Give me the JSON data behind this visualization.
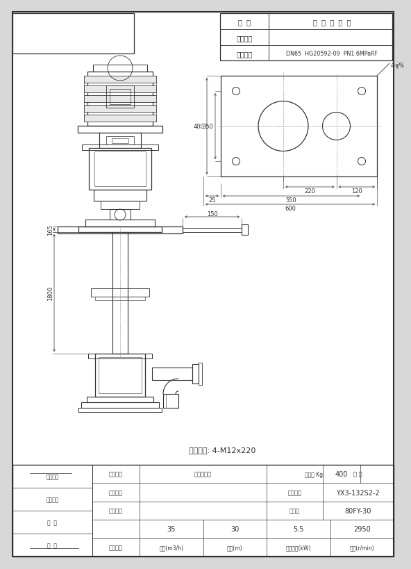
{
  "bg_color": "#d8d8d8",
  "paper_color": "#ffffff",
  "line_color": "#303030",
  "title_table": {
    "name_label": "名  称",
    "std_label": "标  准  及  规  格",
    "inlet_label": "泵吸入口",
    "outlet_label": "泵吐出口",
    "outlet_value": "DN65  HG20592-09  PN1.6MPaRF"
  },
  "anchor_bolt": "地脚螺栓: 4-M12x220",
  "perf_table": {
    "col1": "性能参数",
    "col2_h": "流量(m3/h)",
    "col3_h": "扬程(m)",
    "col4_h": "配用功率(kW)",
    "col5_h": "转速(r/min)",
    "col2_v": "35",
    "col3_v": "30",
    "col4_v": "5.5",
    "col5_v": "2950",
    "equip_no_label": "设备位号",
    "pump_model_label": "泵型号",
    "pump_model_value": "80FY-30",
    "proj_name_label": "工程名称",
    "motor_model_label": "电机型号",
    "motor_model_value": "YX3-132S2-2",
    "equip_name_label": "设备名称",
    "equip_name_value": "液下长轴泵",
    "motor_weight_label": "整机重 Kg",
    "motor_weight_value": "400",
    "qty_label": "数 量"
  },
  "dims": {
    "d400": "400",
    "d350": "350",
    "d220": "220",
    "d120": "120",
    "d25": "25",
    "d550": "550",
    "d600": "600",
    "d150": "150",
    "d165": "165",
    "d1800": "1800"
  },
  "left_labels": [
    "制图校对",
    "审核校对",
    "主  计",
    "日  期"
  ],
  "corner_note": "4-φ%"
}
